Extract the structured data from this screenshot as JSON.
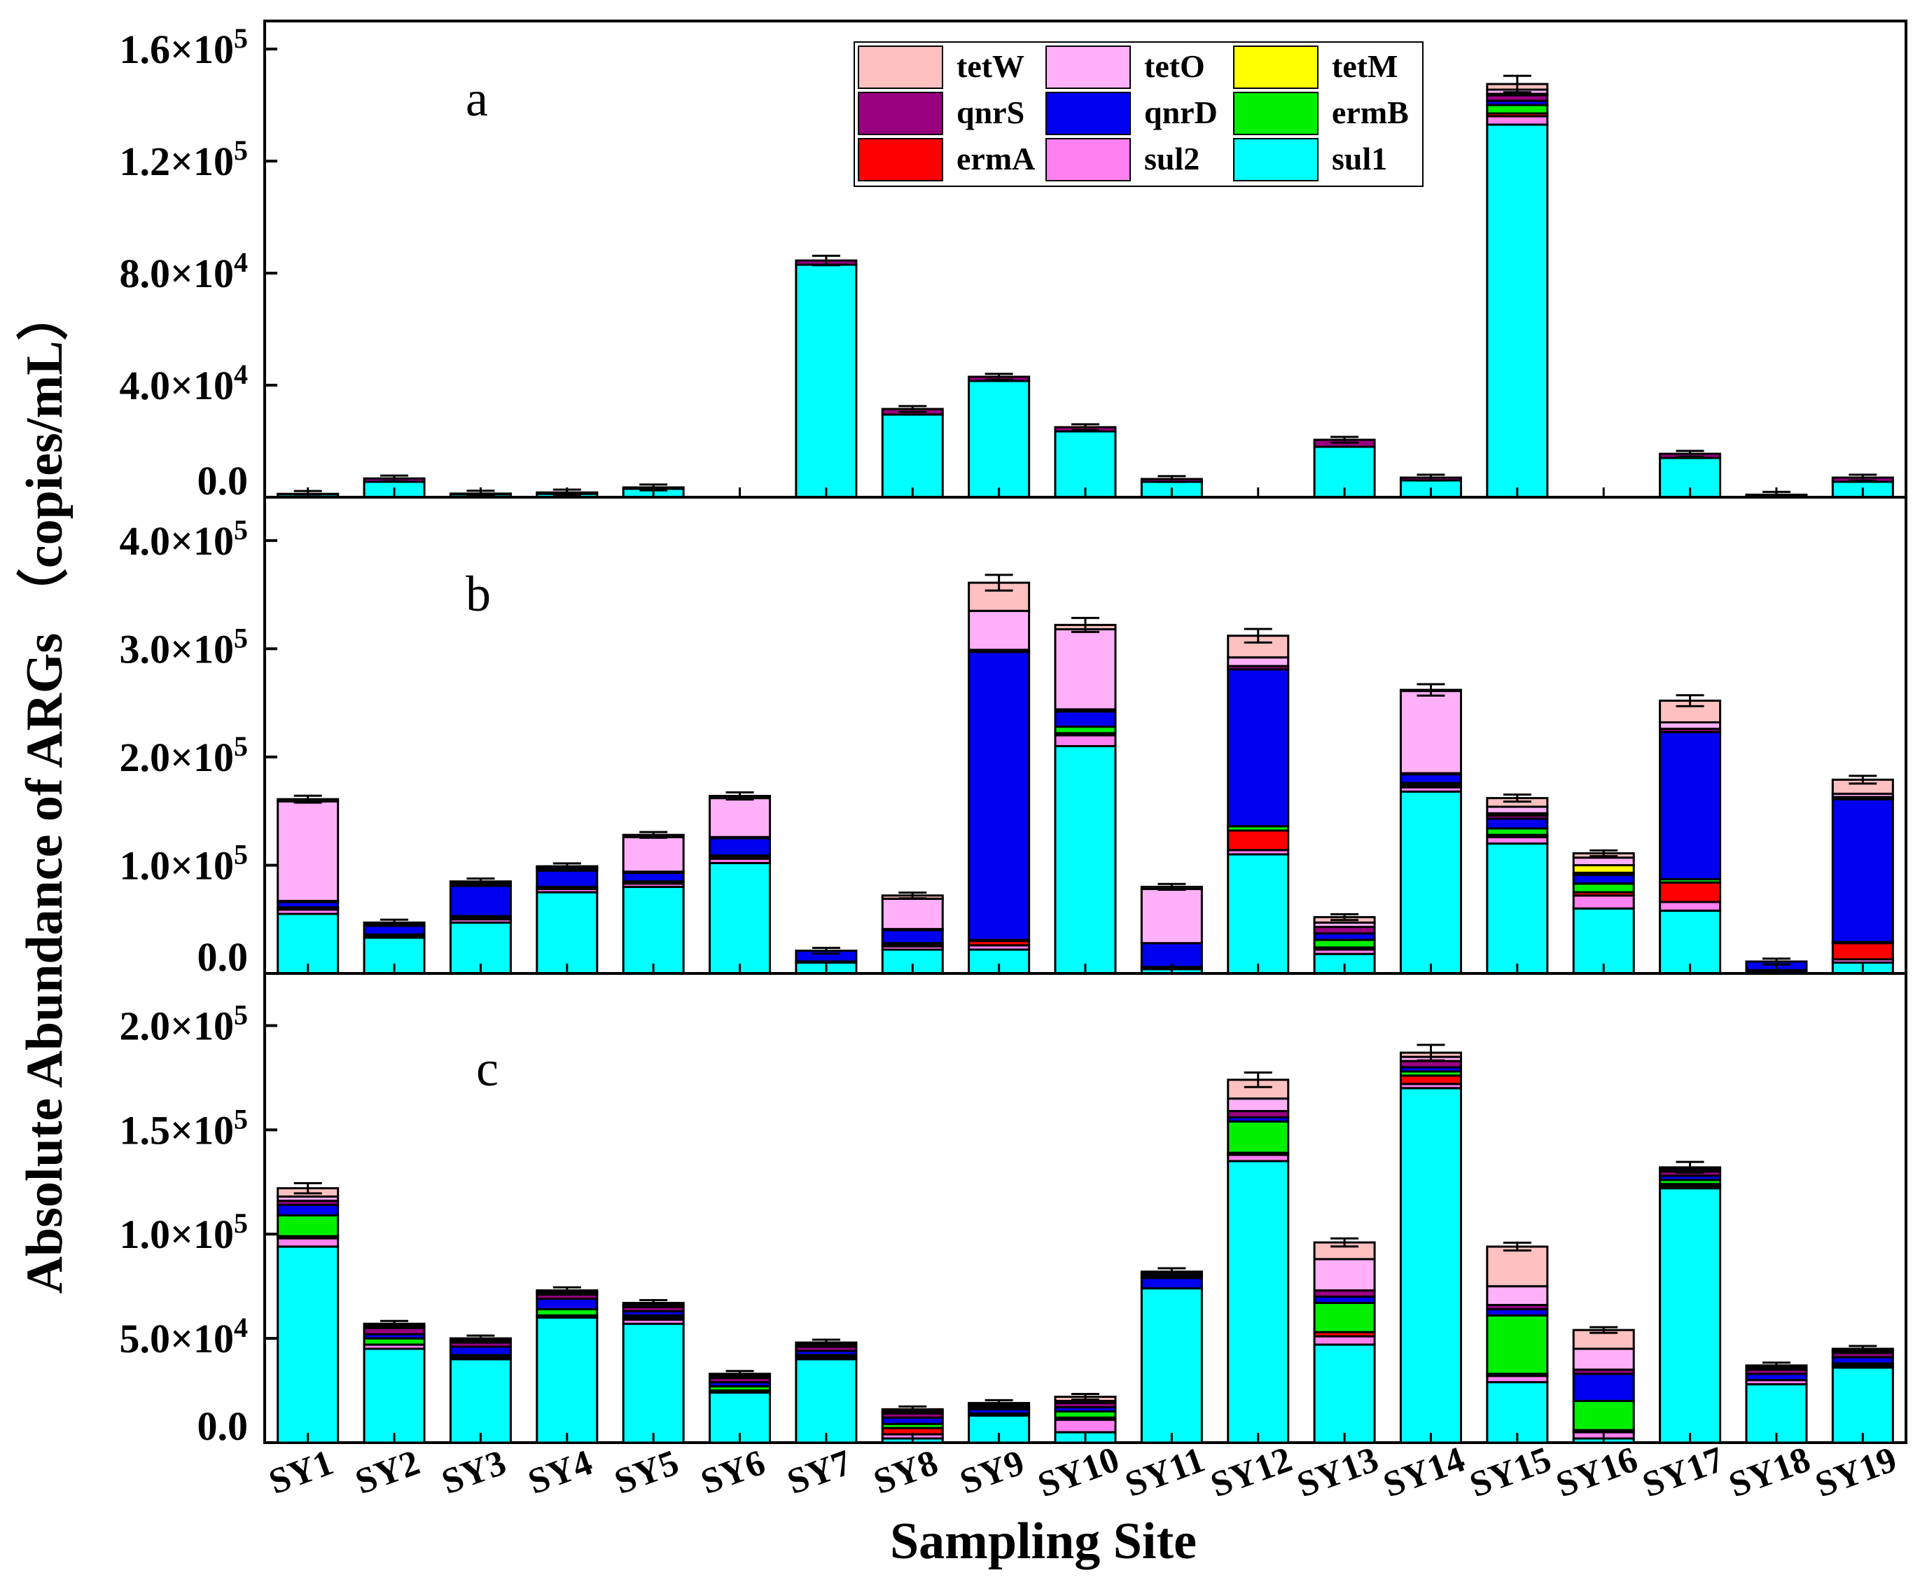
{
  "chart_data": {
    "type": "bar",
    "stacked": true,
    "xlabel": "Sampling Site",
    "ylabel": "Absolute Abundance of ARGs （copies/mL）",
    "categories": [
      "SY1",
      "SY2",
      "SY3",
      "SY4",
      "SY5",
      "SY6",
      "SY7",
      "SY8",
      "SY9",
      "SY10",
      "SY11",
      "SY12",
      "SY13",
      "SY14",
      "SY15",
      "SY16",
      "SY17",
      "SY18",
      "SY19"
    ],
    "legend": {
      "placement": "top-center",
      "entries": [
        {
          "name": "tetW",
          "color": "#FFC0C0"
        },
        {
          "name": "tetO",
          "color": "#FFB0F8"
        },
        {
          "name": "tetM",
          "color": "#FFFF00"
        },
        {
          "name": "qnrS",
          "color": "#990080"
        },
        {
          "name": "qnrD",
          "color": "#0000F0"
        },
        {
          "name": "ermB",
          "color": "#00F000"
        },
        {
          "name": "ermA",
          "color": "#FF0000"
        },
        {
          "name": "sul2",
          "color": "#FF80F0"
        },
        {
          "name": "sul1",
          "color": "#00FFFF"
        }
      ]
    },
    "panels": [
      {
        "label": "a",
        "ylim": [
          0,
          170000
        ],
        "yticks": [
          0,
          40000,
          80000,
          120000,
          160000
        ],
        "ytick_labels": [
          {
            "mantissa": "0.0",
            "exp": ""
          },
          {
            "mantissa": "4.0×10",
            "exp": "4"
          },
          {
            "mantissa": "8.0×10",
            "exp": "4"
          },
          {
            "mantissa": "1.2×10",
            "exp": "5"
          },
          {
            "mantissa": "1.6×10",
            "exp": "5"
          }
        ],
        "series": [
          {
            "name": "sul1",
            "values": [
              1000,
              5500,
              1000,
              1200,
              3000,
              0,
              83000,
              29500,
              41500,
              23500,
              5500,
              0,
              18000,
              6000,
              133000,
              0,
              14000,
              600,
              5500
            ]
          },
          {
            "name": "sul2",
            "values": [
              0,
              0,
              0,
              0,
              0,
              0,
              0,
              0,
              0,
              0,
              0,
              0,
              0,
              0,
              3000,
              0,
              0,
              0,
              0
            ]
          },
          {
            "name": "ermA",
            "values": [
              0,
              0,
              0,
              0,
              0,
              0,
              0,
              0,
              0,
              0,
              0,
              0,
              0,
              0,
              1000,
              0,
              0,
              0,
              0
            ]
          },
          {
            "name": "ermB",
            "values": [
              0,
              0,
              0,
              0,
              0,
              0,
              0,
              0,
              0,
              0,
              0,
              0,
              0,
              0,
              3000,
              0,
              0,
              0,
              0
            ]
          },
          {
            "name": "qnrD",
            "values": [
              0,
              0,
              0,
              0,
              0,
              0,
              0,
              0,
              0,
              0,
              0,
              0,
              0,
              0,
              1500,
              0,
              0,
              0,
              0
            ]
          },
          {
            "name": "qnrS",
            "values": [
              200,
              1200,
              300,
              500,
              500,
              0,
              1500,
              2000,
              1500,
              1500,
              1000,
              0,
              2500,
              1000,
              2000,
              0,
              1500,
              300,
              1500
            ]
          },
          {
            "name": "tetM",
            "values": [
              0,
              0,
              0,
              0,
              0,
              0,
              0,
              0,
              0,
              0,
              0,
              0,
              0,
              0,
              500,
              0,
              0,
              0,
              0
            ]
          },
          {
            "name": "tetO",
            "values": [
              0,
              0,
              0,
              0,
              0,
              0,
              0,
              0,
              0,
              0,
              0,
              0,
              0,
              0,
              1500,
              0,
              0,
              0,
              0
            ]
          },
          {
            "name": "tetW",
            "values": [
              0,
              0,
              0,
              0,
              0,
              0,
              0,
              0,
              0,
              0,
              0,
              0,
              0,
              0,
              2000,
              0,
              0,
              0,
              0
            ]
          }
        ]
      },
      {
        "label": "b",
        "ylim": [
          0,
          440000
        ],
        "yticks": [
          0,
          100000,
          200000,
          300000,
          400000
        ],
        "ytick_labels": [
          {
            "mantissa": "0.0",
            "exp": ""
          },
          {
            "mantissa": "1.0×10",
            "exp": "5"
          },
          {
            "mantissa": "2.0×10",
            "exp": "5"
          },
          {
            "mantissa": "3.0×10",
            "exp": "5"
          },
          {
            "mantissa": "4.0×10",
            "exp": "5"
          }
        ],
        "series": [
          {
            "name": "sul1",
            "values": [
              55000,
              33000,
              47000,
              75000,
              80000,
              102000,
              10000,
              22000,
              22000,
              210000,
              4000,
              110000,
              18000,
              168000,
              120000,
              60000,
              58000,
              2000,
              10000
            ]
          },
          {
            "name": "sul2",
            "values": [
              4000,
              1000,
              3000,
              3000,
              3000,
              4000,
              1000,
              3000,
              4000,
              10000,
              1000,
              4000,
              4000,
              4000,
              6000,
              12000,
              8000,
              0,
              3000
            ]
          },
          {
            "name": "ermA",
            "values": [
              1000,
              1000,
              2000,
              1000,
              1000,
              2000,
              0,
              2000,
              4000,
              2000,
              1000,
              18000,
              2000,
              2000,
              2000,
              3000,
              18000,
              1000,
              15000
            ]
          },
          {
            "name": "ermB",
            "values": [
              1000,
              1000,
              1000,
              1000,
              1000,
              1000,
              0,
              1000,
              1000,
              6000,
              0,
              4000,
              7000,
              2000,
              6000,
              8000,
              3000,
              0,
              1000
            ]
          },
          {
            "name": "qnrD",
            "values": [
              5000,
              8000,
              28000,
              15000,
              8000,
              16000,
              10000,
              12000,
              266000,
              14000,
              22000,
              145000,
              6000,
              8000,
              9000,
              8000,
              136000,
              8000,
              132000
            ]
          },
          {
            "name": "qnrS",
            "values": [
              1000,
              1000,
              2000,
              2000,
              1000,
              1000,
              0,
              1000,
              2000,
              2000,
              0,
              3000,
              6000,
              1000,
              3000,
              2000,
              3000,
              0,
              2000
            ]
          },
          {
            "name": "tetM",
            "values": [
              0,
              0,
              0,
              0,
              0,
              0,
              0,
              0,
              0,
              0,
              0,
              0,
              0,
              0,
              2000,
              7000,
              0,
              0,
              0
            ]
          },
          {
            "name": "tetO",
            "values": [
              92000,
              1000,
              1000,
              1000,
              32000,
              36000,
              0,
              28000,
              36000,
              74000,
              50000,
              8000,
              4000,
              76000,
              6000,
              7000,
              6000,
              0,
              3000
            ]
          },
          {
            "name": "tetW",
            "values": [
              2000,
              1000,
              1000,
              1000,
              2000,
              2000,
              0,
              3000,
              26000,
              4000,
              2000,
              20000,
              5000,
              1000,
              8000,
              4000,
              20000,
              0,
              13000
            ]
          }
        ]
      },
      {
        "label": "c",
        "ylim": [
          0,
          225000
        ],
        "yticks": [
          0,
          50000,
          100000,
          150000,
          200000
        ],
        "ytick_labels": [
          {
            "mantissa": "0.0",
            "exp": ""
          },
          {
            "mantissa": "5.0×10",
            "exp": "4"
          },
          {
            "mantissa": "1.0×10",
            "exp": "5"
          },
          {
            "mantissa": "1.5×10",
            "exp": "5"
          },
          {
            "mantissa": "2.0×10",
            "exp": "5"
          }
        ],
        "series": [
          {
            "name": "sul1",
            "values": [
              94000,
              45000,
              40000,
              60000,
              57000,
              24000,
              40000,
              2000,
              13000,
              5000,
              74000,
              135000,
              47000,
              170000,
              29000,
              2000,
              122000,
              28000,
              36000
            ]
          },
          {
            "name": "sul2",
            "values": [
              4000,
              2000,
              1000,
              1000,
              2000,
              1000,
              1000,
              2000,
              0,
              6000,
              0,
              3000,
              4000,
              2000,
              3000,
              3000,
              1000,
              2000,
              1000
            ]
          },
          {
            "name": "ermA",
            "values": [
              1000,
              0,
              0,
              0,
              1000,
              0,
              0,
              3000,
              0,
              1000,
              0,
              1000,
              2000,
              4000,
              1000,
              1000,
              1000,
              0,
              0
            ]
          },
          {
            "name": "ermB",
            "values": [
              10000,
              3000,
              1000,
              3000,
              1000,
              2000,
              1000,
              2000,
              1000,
              3000,
              0,
              15000,
              14000,
              2000,
              28000,
              14000,
              2000,
              0,
              1000
            ]
          },
          {
            "name": "qnrD",
            "values": [
              5000,
              2000,
              4000,
              5000,
              2000,
              2000,
              2000,
              3000,
              2000,
              2000,
              5000,
              2000,
              3000,
              2000,
              3000,
              13000,
              2000,
              3000,
              3000
            ]
          },
          {
            "name": "qnrS",
            "values": [
              2000,
              3000,
              2000,
              2000,
              2000,
              2000,
              2000,
              2000,
              1000,
              2000,
              1000,
              3000,
              3000,
              3000,
              2000,
              2000,
              2000,
              2000,
              2000
            ]
          },
          {
            "name": "tetM",
            "values": [
              0,
              0,
              0,
              0,
              0,
              0,
              0,
              0,
              0,
              0,
              0,
              0,
              0,
              0,
              0,
              0,
              0,
              0,
              0
            ]
          },
          {
            "name": "tetO",
            "values": [
              2000,
              1000,
              1000,
              1000,
              1000,
              1000,
              1000,
              1000,
              1000,
              1000,
              1000,
              6000,
              15000,
              2000,
              9000,
              10000,
              1000,
              1000,
              1000
            ]
          },
          {
            "name": "tetW",
            "values": [
              4000,
              1000,
              1000,
              1000,
              1000,
              1000,
              1000,
              1000,
              1000,
              2000,
              1000,
              9000,
              8000,
              2000,
              19000,
              9000,
              1000,
              1000,
              1000
            ]
          }
        ]
      }
    ]
  }
}
